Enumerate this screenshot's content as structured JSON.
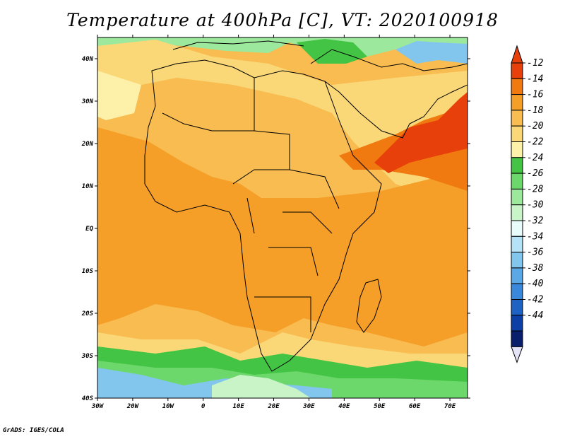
{
  "title": "Temperature at 400hPa [C], VT: 2020100918",
  "credit": "GrADS: IGES/COLA",
  "map": {
    "lon_range": [
      -30,
      75
    ],
    "lat_range": [
      -40,
      45
    ],
    "x_tick_labels": [
      "30W",
      "20W",
      "10W",
      "0",
      "10E",
      "20E",
      "30E",
      "40E",
      "50E",
      "60E",
      "70E"
    ],
    "y_tick_labels": [
      "40N",
      "30N",
      "20N",
      "10N",
      "EQ",
      "10S",
      "20S",
      "30S",
      "40S"
    ]
  },
  "colorbar": {
    "labels": [
      "-12",
      "-14",
      "-16",
      "-18",
      "-20",
      "-22",
      "-24",
      "-26",
      "-28",
      "-30",
      "-32",
      "-34",
      "-36",
      "-38",
      "-40",
      "-42",
      "-44"
    ],
    "colors": [
      "#e8400a",
      "#f07a10",
      "#f59e28",
      "#f8bc50",
      "#fad878",
      "#fdf0a8",
      "#44c444",
      "#6cd86c",
      "#9ce89c",
      "#c8f4c8",
      "#e8fcfc",
      "#b4e2f6",
      "#82c6ee",
      "#5aa8e6",
      "#3a88dc",
      "#1e62c4",
      "#0c40a6",
      "#0a1e6e"
    ],
    "top_arrow_color": "#e8400a",
    "bottom_arrow_color": "#e4e4f8"
  }
}
